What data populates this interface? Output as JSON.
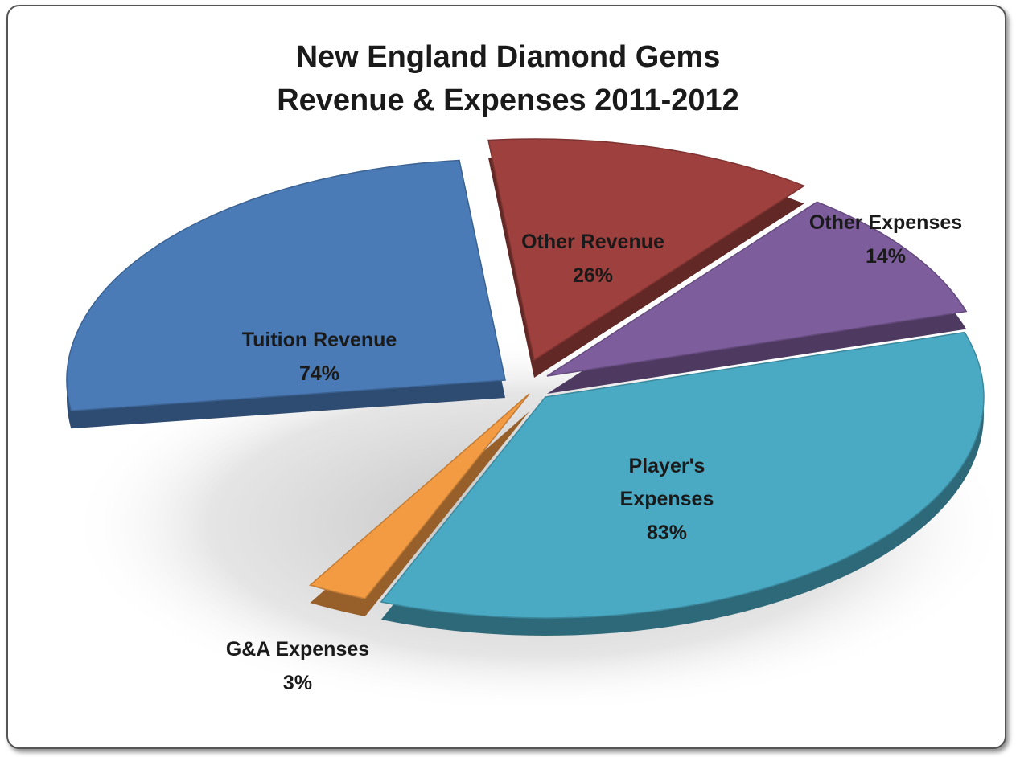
{
  "chart_data": {
    "type": "pie",
    "title_lines": [
      "New England Diamond Gems",
      "Revenue & Expenses 2011-2012"
    ],
    "legend": "none",
    "slices": [
      {
        "name": "Tuition Revenue",
        "label_lines": [
          "Tuition Revenue"
        ],
        "value": 74,
        "value_label": "74%",
        "color": "#4a7bb6"
      },
      {
        "name": "Other Revenue",
        "label_lines": [
          "Other Revenue"
        ],
        "value": 26,
        "value_label": "26%",
        "color": "#9e403d"
      },
      {
        "name": "Other Expenses",
        "label_lines": [
          "Other Expenses"
        ],
        "value": 14,
        "value_label": "14%",
        "color": "#7d5d9c"
      },
      {
        "name": "Player's Expenses",
        "label_lines": [
          "Player's",
          "Expenses"
        ],
        "value": 83,
        "value_label": "83%",
        "color": "#4aaac4"
      },
      {
        "name": "G&A Expenses",
        "label_lines": [
          "G&A Expenses"
        ],
        "value": 3,
        "value_label": "3%",
        "color": "#f39b43"
      }
    ]
  }
}
